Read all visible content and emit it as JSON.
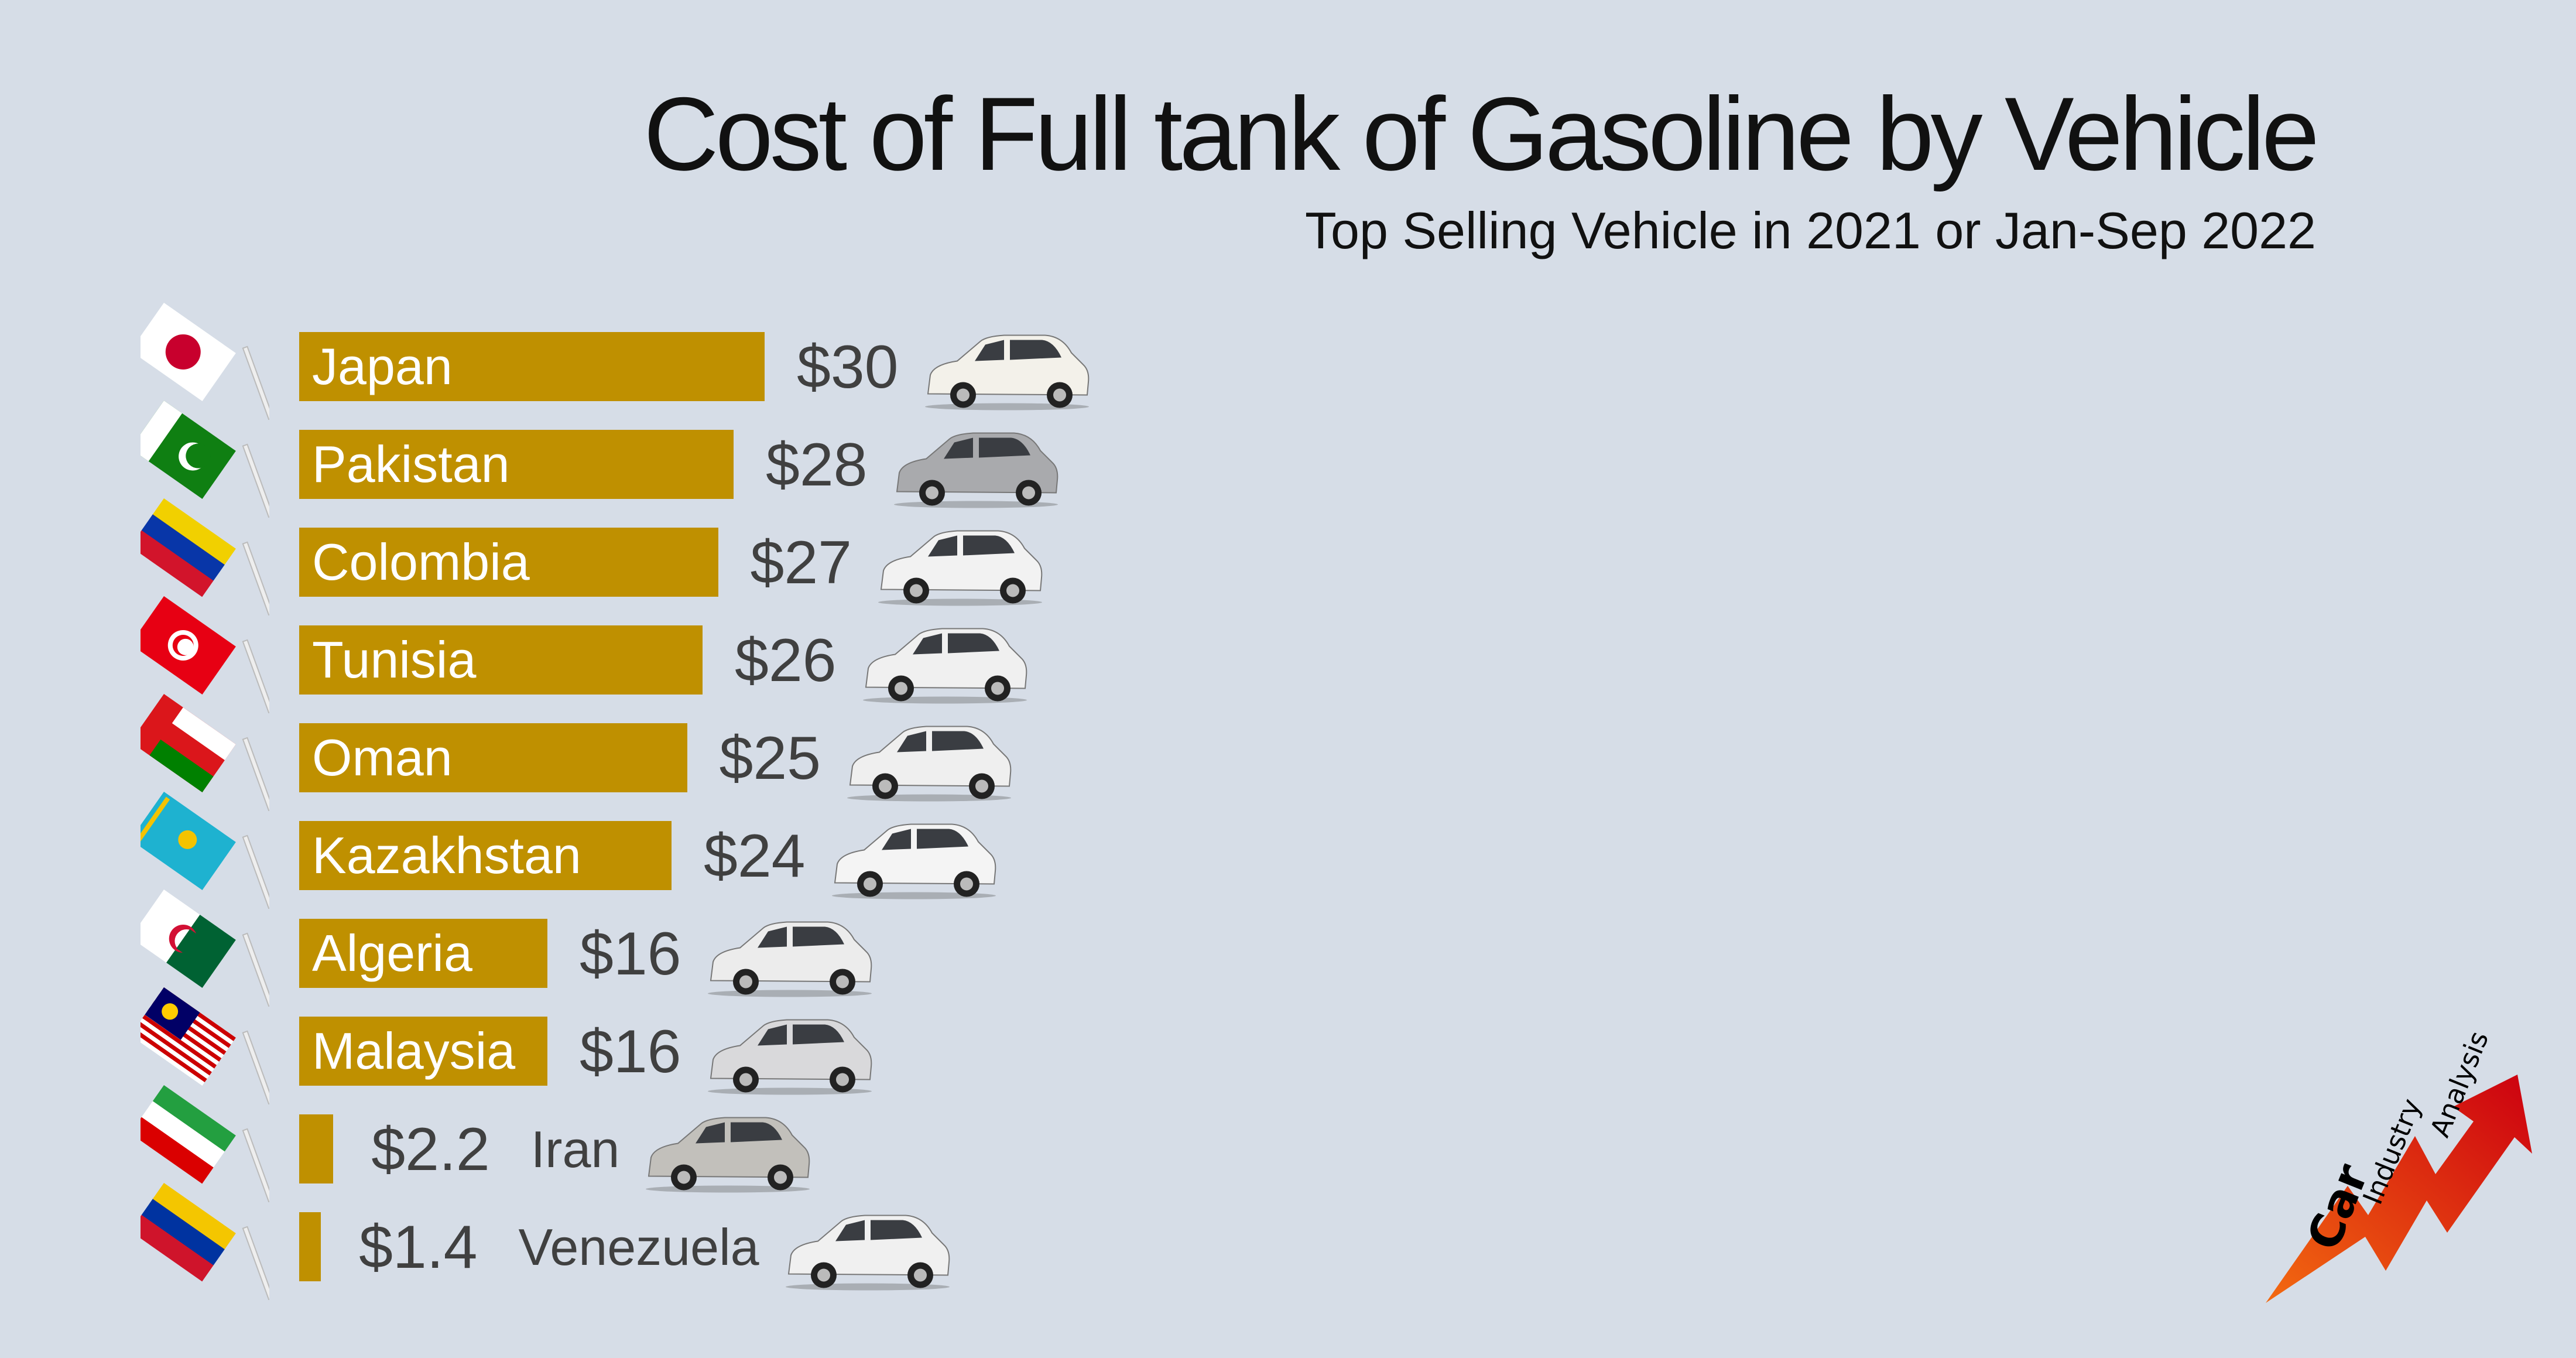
{
  "chart_data": {
    "type": "bar",
    "orientation": "horizontal",
    "title": "Cost of Full tank of Gasoline by Vehicle",
    "subtitle": "Top Selling Vehicle in 2021 or Jan-Sep 2022",
    "unit": "USD",
    "categories": [
      "Japan",
      "Pakistan",
      "Colombia",
      "Tunisia",
      "Oman",
      "Kazakhstan",
      "Algeria",
      "Malaysia",
      "Iran",
      "Venezuela"
    ],
    "values": [
      30,
      28,
      27,
      26,
      25,
      24,
      16,
      16,
      2.2,
      1.4
    ],
    "value_labels": [
      "$30",
      "$28",
      "$27",
      "$26",
      "$25",
      "$24",
      "$16",
      "$16",
      "$2.2",
      "$1.4"
    ],
    "xlim": [
      0,
      30
    ],
    "grid": false,
    "bar_color": "#bf9000",
    "flags": [
      {
        "icon": "japan-flag-icon",
        "colors": [
          "#ffffff",
          "#c8002d"
        ]
      },
      {
        "icon": "pakistan-flag-icon",
        "colors": [
          "#ffffff",
          "#0f7f12"
        ]
      },
      {
        "icon": "colombia-flag-icon",
        "colors": [
          "#f1d000",
          "#0836a8",
          "#d2142b"
        ]
      },
      {
        "icon": "tunisia-flag-icon",
        "colors": [
          "#e70013",
          "#ffffff"
        ]
      },
      {
        "icon": "oman-flag-icon",
        "colors": [
          "#db161b",
          "#ffffff",
          "#008000"
        ]
      },
      {
        "icon": "kazakhstan-flag-icon",
        "colors": [
          "#1eb2d0",
          "#f4c300"
        ]
      },
      {
        "icon": "algeria-flag-icon",
        "colors": [
          "#ffffff",
          "#006233",
          "#d21034"
        ]
      },
      {
        "icon": "malaysia-flag-icon",
        "colors": [
          "#cc0001",
          "#ffffff",
          "#010066",
          "#ffcc00"
        ]
      },
      {
        "icon": "iran-flag-icon",
        "colors": [
          "#239f40",
          "#ffffff",
          "#da0000"
        ]
      },
      {
        "icon": "venezuela-flag-icon",
        "colors": [
          "#f4c600",
          "#0033a0",
          "#cf142b"
        ]
      }
    ],
    "car_colors": [
      "#f3f1ea",
      "#a9aaad",
      "#f2f2f2",
      "#f0f0f0",
      "#efefef",
      "#f4f4f4",
      "#ececec",
      "#d9d9db",
      "#c2c0bb",
      "#f0f0f0"
    ]
  },
  "logo": {
    "words": [
      "Car",
      "Industry",
      "Analysis"
    ]
  }
}
